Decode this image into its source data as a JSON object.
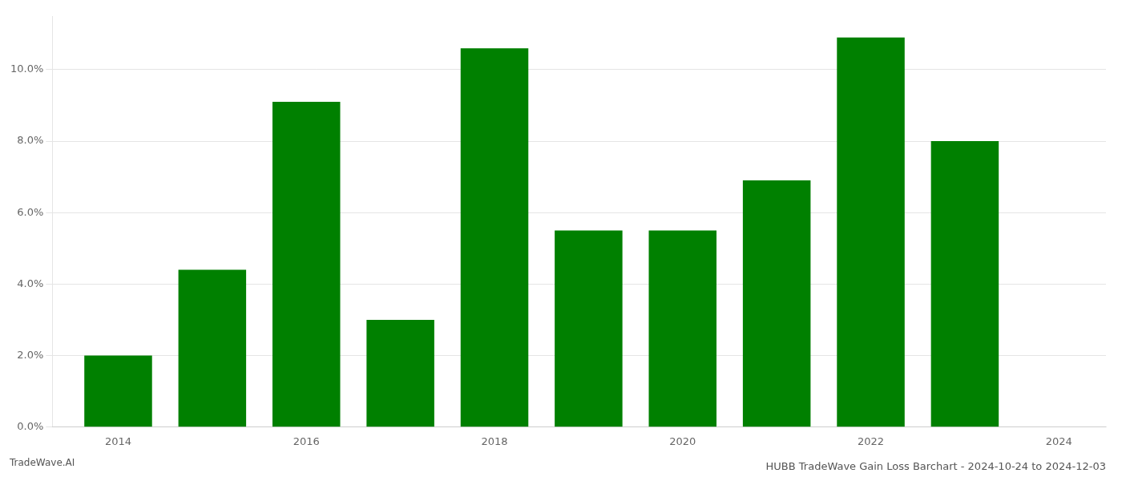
{
  "chart_data": {
    "type": "bar",
    "title": "HUBB TradeWave Gain Loss Barchart - 2024-10-24 to 2024-12-03",
    "footer": "TradeWave.AI",
    "x": [
      2014,
      2015,
      2016,
      2017,
      2018,
      2019,
      2020,
      2021,
      2022,
      2023
    ],
    "values": [
      0.02,
      0.044,
      0.091,
      0.03,
      0.106,
      0.055,
      0.055,
      0.069,
      0.109,
      0.08
    ],
    "color": "#008000",
    "xlim": [
      2013.3,
      2024.5
    ],
    "xticks": [
      2014,
      2016,
      2018,
      2020,
      2022,
      2024
    ],
    "ylim": [
      0.0,
      0.115
    ],
    "yticks": [
      {
        "value": 0.0,
        "label": "0.0%"
      },
      {
        "value": 0.02,
        "label": "2.0%"
      },
      {
        "value": 0.04,
        "label": "4.0%"
      },
      {
        "value": 0.06,
        "label": "6.0%"
      },
      {
        "value": 0.08,
        "label": "8.0%"
      },
      {
        "value": 0.1,
        "label": "10.0%"
      }
    ],
    "grid": true
  }
}
